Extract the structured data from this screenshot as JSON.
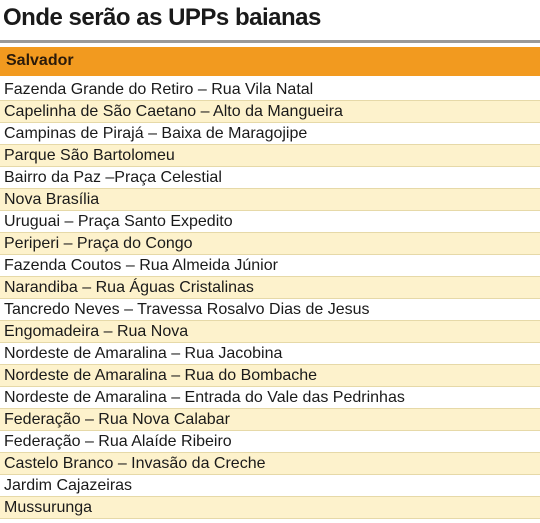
{
  "title": "Onde serão as UPPs baianas",
  "table": {
    "header": "Salvador",
    "rows": [
      "Fazenda Grande do Retiro – Rua Vila Natal",
      "Capelinha de São Caetano – Alto da Mangueira",
      "Campinas de Pirajá – Baixa de Maragojipe",
      "Parque São Bartolomeu",
      "Bairro da Paz –Praça Celestial",
      "Nova Brasília",
      "Uruguai – Praça Santo Expedito",
      "Periperi – Praça do Congo",
      "Fazenda Coutos – Rua Almeida Júnior",
      "Narandiba – Rua Águas Cristalinas",
      "Tancredo Neves – Travessa Rosalvo Dias de Jesus",
      "Engomadeira – Rua Nova",
      "Nordeste de Amaralina – Rua Jacobina",
      "Nordeste de Amaralina – Rua do Bombache",
      "Nordeste de Amaralina – Entrada do Vale das Pedrinhas",
      "Federação – Rua Nova Calabar",
      "Federação – Rua Alaíde Ribeiro",
      "Castelo Branco – Invasão da Creche",
      "Jardim Cajazeiras",
      "Mussurunga"
    ]
  }
}
